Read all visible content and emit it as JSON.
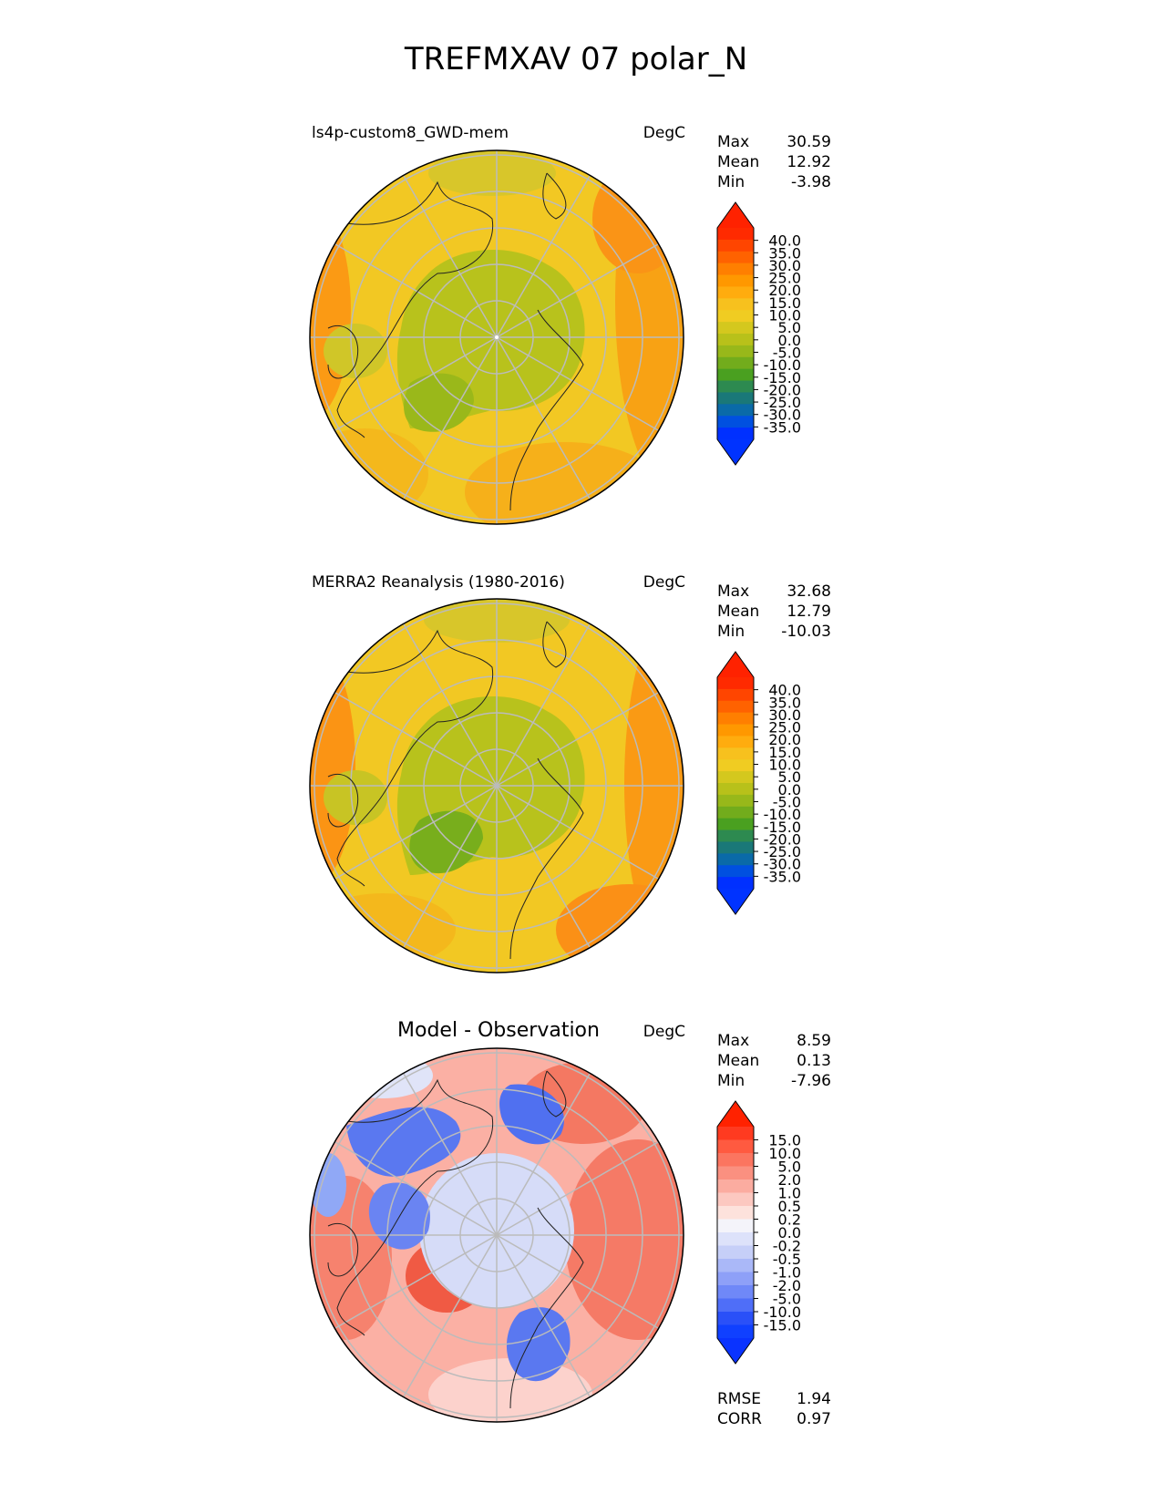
{
  "title": "TREFMXAV 07 polar_N",
  "panels": [
    {
      "id": "model",
      "label": "ls4p-custom8_GWD-mem",
      "units": "DegC",
      "stats": {
        "max": "30.59",
        "mean": "12.92",
        "min": "-3.98"
      },
      "colorbar": {
        "ticks": [
          "40.0",
          "35.0",
          "30.0",
          "25.0",
          "20.0",
          "15.0",
          "10.0",
          "5.0",
          "0.0",
          "-5.0",
          "-10.0",
          "-15.0",
          "-20.0",
          "-25.0",
          "-30.0",
          "-35.0"
        ],
        "colors": [
          "#ff2a00",
          "#ff4500",
          "#ff6200",
          "#ff7f00",
          "#ff9800",
          "#ffac0e",
          "#f7c11e",
          "#f0cc22",
          "#d4c81e",
          "#b8c11a",
          "#98b81a",
          "#72ac1c",
          "#4aa020",
          "#2d8a50",
          "#1a7878",
          "#0a6aa8",
          "#0050e0",
          "#0030ff"
        ],
        "top_color": "#ff2200",
        "bottom_color": "#0033ff"
      },
      "field": "model_temp"
    },
    {
      "id": "obs",
      "label": "MERRA2 Reanalysis (1980-2016)",
      "units": "DegC",
      "stats": {
        "max": "32.68",
        "mean": "12.79",
        "min": "-10.03"
      },
      "colorbar": {
        "ticks": [
          "40.0",
          "35.0",
          "30.0",
          "25.0",
          "20.0",
          "15.0",
          "10.0",
          "5.0",
          "0.0",
          "-5.0",
          "-10.0",
          "-15.0",
          "-20.0",
          "-25.0",
          "-30.0",
          "-35.0"
        ],
        "colors": [
          "#ff2a00",
          "#ff4500",
          "#ff6200",
          "#ff7f00",
          "#ff9800",
          "#ffac0e",
          "#f7c11e",
          "#f0cc22",
          "#d4c81e",
          "#b8c11a",
          "#98b81a",
          "#72ac1c",
          "#4aa020",
          "#2d8a50",
          "#1a7878",
          "#0a6aa8",
          "#0050e0",
          "#0030ff"
        ],
        "top_color": "#ff2200",
        "bottom_color": "#0033ff"
      },
      "field": "obs_temp"
    },
    {
      "id": "diff",
      "label": "Model - Observation",
      "units": "DegC",
      "stats": {
        "max": "8.59",
        "mean": "0.13",
        "min": "-7.96"
      },
      "colorbar": {
        "ticks": [
          "15.0",
          "10.0",
          "5.0",
          "2.0",
          "1.0",
          "0.5",
          "0.2",
          "0.0",
          "-0.2",
          "-0.5",
          "-1.0",
          "-2.0",
          "-5.0",
          "-10.0",
          "-15.0"
        ],
        "colors": [
          "#ff3a20",
          "#ff5a40",
          "#fb7560",
          "#fa9080",
          "#fbaca0",
          "#fcc8c0",
          "#fde2dc",
          "#f4f4fa",
          "#dde2fa",
          "#c6cff8",
          "#aab8f8",
          "#8ea0f8",
          "#6f88f8",
          "#4f6ef8",
          "#2a50f8",
          "#1040ff"
        ],
        "top_color": "#ff2200",
        "bottom_color": "#0a33ff"
      },
      "field": "diff"
    }
  ],
  "diff_metrics": {
    "rmse_label": "RMSE",
    "rmse": "1.94",
    "corr_label": "CORR",
    "corr": "0.97"
  },
  "stat_labels": {
    "max": "Max",
    "mean": "Mean",
    "min": "Min"
  }
}
